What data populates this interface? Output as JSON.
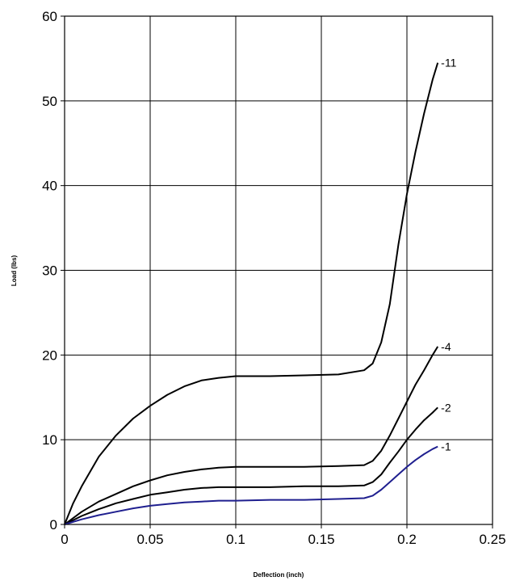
{
  "chart_data": {
    "type": "line",
    "title": "",
    "xlabel": "Deflection (inch)",
    "ylabel": "Load (lbs)",
    "xlim": [
      0,
      0.25
    ],
    "ylim": [
      0,
      60
    ],
    "x_ticks": [
      "0",
      "0.05",
      "0.1",
      "0.15",
      "0.2",
      "0.25"
    ],
    "y_ticks": [
      "0",
      "10",
      "20",
      "30",
      "40",
      "50",
      "60"
    ],
    "grid": true,
    "legend": "none",
    "series": [
      {
        "name": "-11",
        "color": "#000000",
        "x": [
          0,
          0.005,
          0.01,
          0.02,
          0.03,
          0.04,
          0.05,
          0.06,
          0.07,
          0.08,
          0.09,
          0.1,
          0.12,
          0.14,
          0.16,
          0.175,
          0.18,
          0.185,
          0.19,
          0.195,
          0.2,
          0.205,
          0.21,
          0.215,
          0.218
        ],
        "y": [
          0,
          2.5,
          4.5,
          8,
          10.5,
          12.5,
          14,
          15.3,
          16.3,
          17,
          17.3,
          17.5,
          17.5,
          17.6,
          17.7,
          18.2,
          19,
          21.5,
          26,
          33,
          39,
          44,
          48.5,
          52.5,
          54.5
        ]
      },
      {
        "name": "-4",
        "color": "#000000",
        "x": [
          0,
          0.01,
          0.02,
          0.03,
          0.04,
          0.05,
          0.06,
          0.07,
          0.08,
          0.09,
          0.1,
          0.12,
          0.14,
          0.16,
          0.175,
          0.18,
          0.185,
          0.19,
          0.195,
          0.2,
          0.205,
          0.21,
          0.215,
          0.218
        ],
        "y": [
          0,
          1.5,
          2.7,
          3.6,
          4.5,
          5.2,
          5.8,
          6.2,
          6.5,
          6.7,
          6.8,
          6.8,
          6.8,
          6.9,
          7.0,
          7.5,
          8.7,
          10.5,
          12.5,
          14.5,
          16.5,
          18.2,
          20,
          21
        ]
      },
      {
        "name": "-2",
        "color": "#000000",
        "x": [
          0,
          0.01,
          0.02,
          0.03,
          0.04,
          0.05,
          0.06,
          0.07,
          0.08,
          0.09,
          0.1,
          0.12,
          0.14,
          0.16,
          0.175,
          0.18,
          0.185,
          0.19,
          0.195,
          0.2,
          0.205,
          0.21,
          0.215,
          0.218
        ],
        "y": [
          0,
          1.0,
          1.8,
          2.5,
          3.0,
          3.5,
          3.8,
          4.1,
          4.3,
          4.4,
          4.4,
          4.4,
          4.5,
          4.5,
          4.6,
          5.0,
          5.9,
          7.3,
          8.6,
          10.0,
          11.2,
          12.3,
          13.2,
          13.8
        ]
      },
      {
        "name": "-1",
        "color": "#1f1f8f",
        "x": [
          0,
          0.01,
          0.02,
          0.03,
          0.04,
          0.05,
          0.06,
          0.07,
          0.08,
          0.09,
          0.1,
          0.12,
          0.14,
          0.16,
          0.175,
          0.18,
          0.185,
          0.19,
          0.195,
          0.2,
          0.205,
          0.21,
          0.215,
          0.218
        ],
        "y": [
          0,
          0.6,
          1.1,
          1.5,
          1.9,
          2.2,
          2.4,
          2.6,
          2.7,
          2.8,
          2.8,
          2.9,
          2.9,
          3.0,
          3.1,
          3.4,
          4.1,
          5.0,
          5.9,
          6.8,
          7.6,
          8.3,
          8.9,
          9.2
        ]
      }
    ]
  }
}
